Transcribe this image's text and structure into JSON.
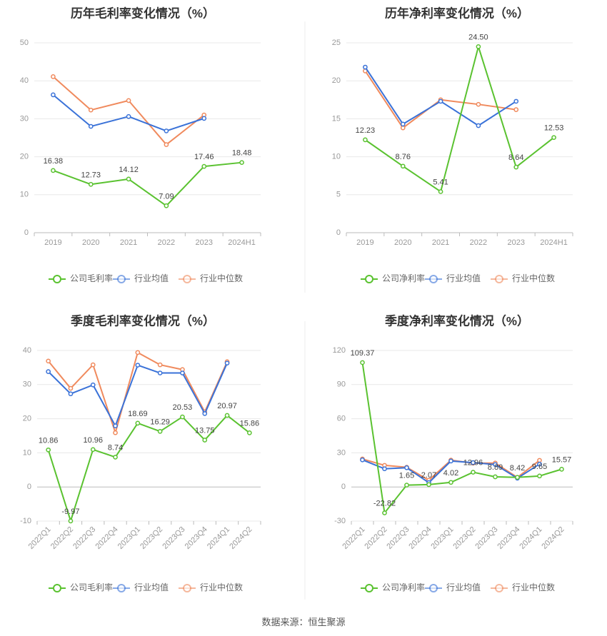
{
  "colors": {
    "company": "#5ac230",
    "industry_avg": "#3a72d8",
    "industry_median": "#f08a5d",
    "grid": "#e8e8e8",
    "axis": "#bbbbbb",
    "divider": "#eeeeee"
  },
  "source_text": "数据来源：恒生聚源",
  "chart_data": [
    {
      "type": "line",
      "title": "历年毛利率变化情况（%）",
      "categories": [
        "2019",
        "2020",
        "2021",
        "2022",
        "2023",
        "2024H1"
      ],
      "ylim": [
        0,
        50
      ],
      "yticks": [
        0,
        10,
        20,
        30,
        40,
        50
      ],
      "rotate_xticks": false,
      "legend": [
        "公司毛利率",
        "行业均值",
        "行业中位数"
      ],
      "series": [
        {
          "name": "公司毛利率",
          "key": "company",
          "values": [
            16.38,
            12.73,
            14.12,
            7.09,
            17.46,
            18.48
          ],
          "labels": [
            "16.38",
            "12.73",
            "14.12",
            "7.09",
            "17.46",
            "18.48"
          ]
        },
        {
          "name": "行业均值",
          "key": "industry_avg",
          "values": [
            36.3,
            28.0,
            30.6,
            26.8,
            30.1,
            null
          ]
        },
        {
          "name": "行业中位数",
          "key": "industry_median",
          "values": [
            41.1,
            32.3,
            34.8,
            23.2,
            31.0,
            null
          ]
        }
      ]
    },
    {
      "type": "line",
      "title": "历年净利率变化情况（%）",
      "categories": [
        "2019",
        "2020",
        "2021",
        "2022",
        "2023",
        "2024H1"
      ],
      "ylim": [
        0,
        25
      ],
      "yticks": [
        0,
        5,
        10,
        15,
        20,
        25
      ],
      "rotate_xticks": false,
      "legend": [
        "公司净利率",
        "行业均值",
        "行业中位数"
      ],
      "series": [
        {
          "name": "公司净利率",
          "key": "company",
          "values": [
            12.23,
            8.76,
            5.41,
            24.5,
            8.64,
            12.53
          ],
          "labels": [
            "12.23",
            "8.76",
            "5.41",
            "24.50",
            "8.64",
            "12.53"
          ]
        },
        {
          "name": "行业均值",
          "key": "industry_avg",
          "values": [
            21.8,
            14.3,
            17.3,
            14.1,
            17.3,
            null
          ]
        },
        {
          "name": "行业中位数",
          "key": "industry_median",
          "values": [
            21.3,
            13.8,
            17.5,
            16.9,
            16.2,
            null
          ]
        }
      ]
    },
    {
      "type": "line",
      "title": "季度毛利率变化情况（%）",
      "categories": [
        "2022Q1",
        "2022Q2",
        "2022Q3",
        "2022Q4",
        "2023Q1",
        "2023Q2",
        "2023Q3",
        "2023Q4",
        "2024Q1",
        "2024Q2"
      ],
      "ylim": [
        -10,
        40
      ],
      "yticks": [
        -10,
        0,
        10,
        20,
        30,
        40
      ],
      "rotate_xticks": true,
      "legend": [
        "公司毛利率",
        "行业均值",
        "行业中位数"
      ],
      "series": [
        {
          "name": "公司毛利率",
          "key": "company",
          "values": [
            10.86,
            -9.97,
            10.96,
            8.74,
            18.69,
            16.29,
            20.53,
            13.75,
            20.97,
            15.86
          ],
          "labels": [
            "10.86",
            "-9.97",
            "10.96",
            "8.74",
            "18.69",
            "16.29",
            "20.53",
            "13.75",
            "20.97",
            "15.86"
          ]
        },
        {
          "name": "行业均值",
          "key": "industry_avg",
          "values": [
            33.8,
            27.3,
            29.9,
            17.9,
            35.7,
            33.4,
            33.4,
            21.5,
            36.3,
            null
          ]
        },
        {
          "name": "行业中位数",
          "key": "industry_median",
          "values": [
            36.9,
            28.9,
            35.8,
            15.9,
            39.4,
            35.8,
            34.4,
            22.0,
            36.7,
            null
          ]
        }
      ]
    },
    {
      "type": "line",
      "title": "季度净利率变化情况（%）",
      "categories": [
        "2022Q1",
        "2022Q2",
        "2022Q3",
        "2022Q4",
        "2023Q1",
        "2023Q2",
        "2023Q3",
        "2023Q4",
        "2024Q1",
        "2024Q2"
      ],
      "ylim": [
        -30,
        120
      ],
      "yticks": [
        -30,
        0,
        30,
        60,
        90,
        120
      ],
      "rotate_xticks": true,
      "legend": [
        "公司净利率",
        "行业均值",
        "行业中位数"
      ],
      "series": [
        {
          "name": "公司净利率",
          "key": "company",
          "values": [
            109.37,
            -22.82,
            1.65,
            2.07,
            4.02,
            12.96,
            8.89,
            8.42,
            9.65,
            15.57
          ],
          "labels": [
            "109.37",
            "-22.82",
            "1.65",
            "2.07",
            "4.02",
            "12.96",
            "8.89",
            "8.42",
            "9.65",
            "15.57"
          ]
        },
        {
          "name": "行业均值",
          "key": "industry_avg",
          "values": [
            23.8,
            16.0,
            16.9,
            3.8,
            22.8,
            21.4,
            19.7,
            7.7,
            20.1,
            null
          ]
        },
        {
          "name": "行业中位数",
          "key": "industry_median",
          "values": [
            24.6,
            19.0,
            17.3,
            5.9,
            23.6,
            20.9,
            21.0,
            8.4,
            23.4,
            null
          ]
        }
      ]
    }
  ]
}
